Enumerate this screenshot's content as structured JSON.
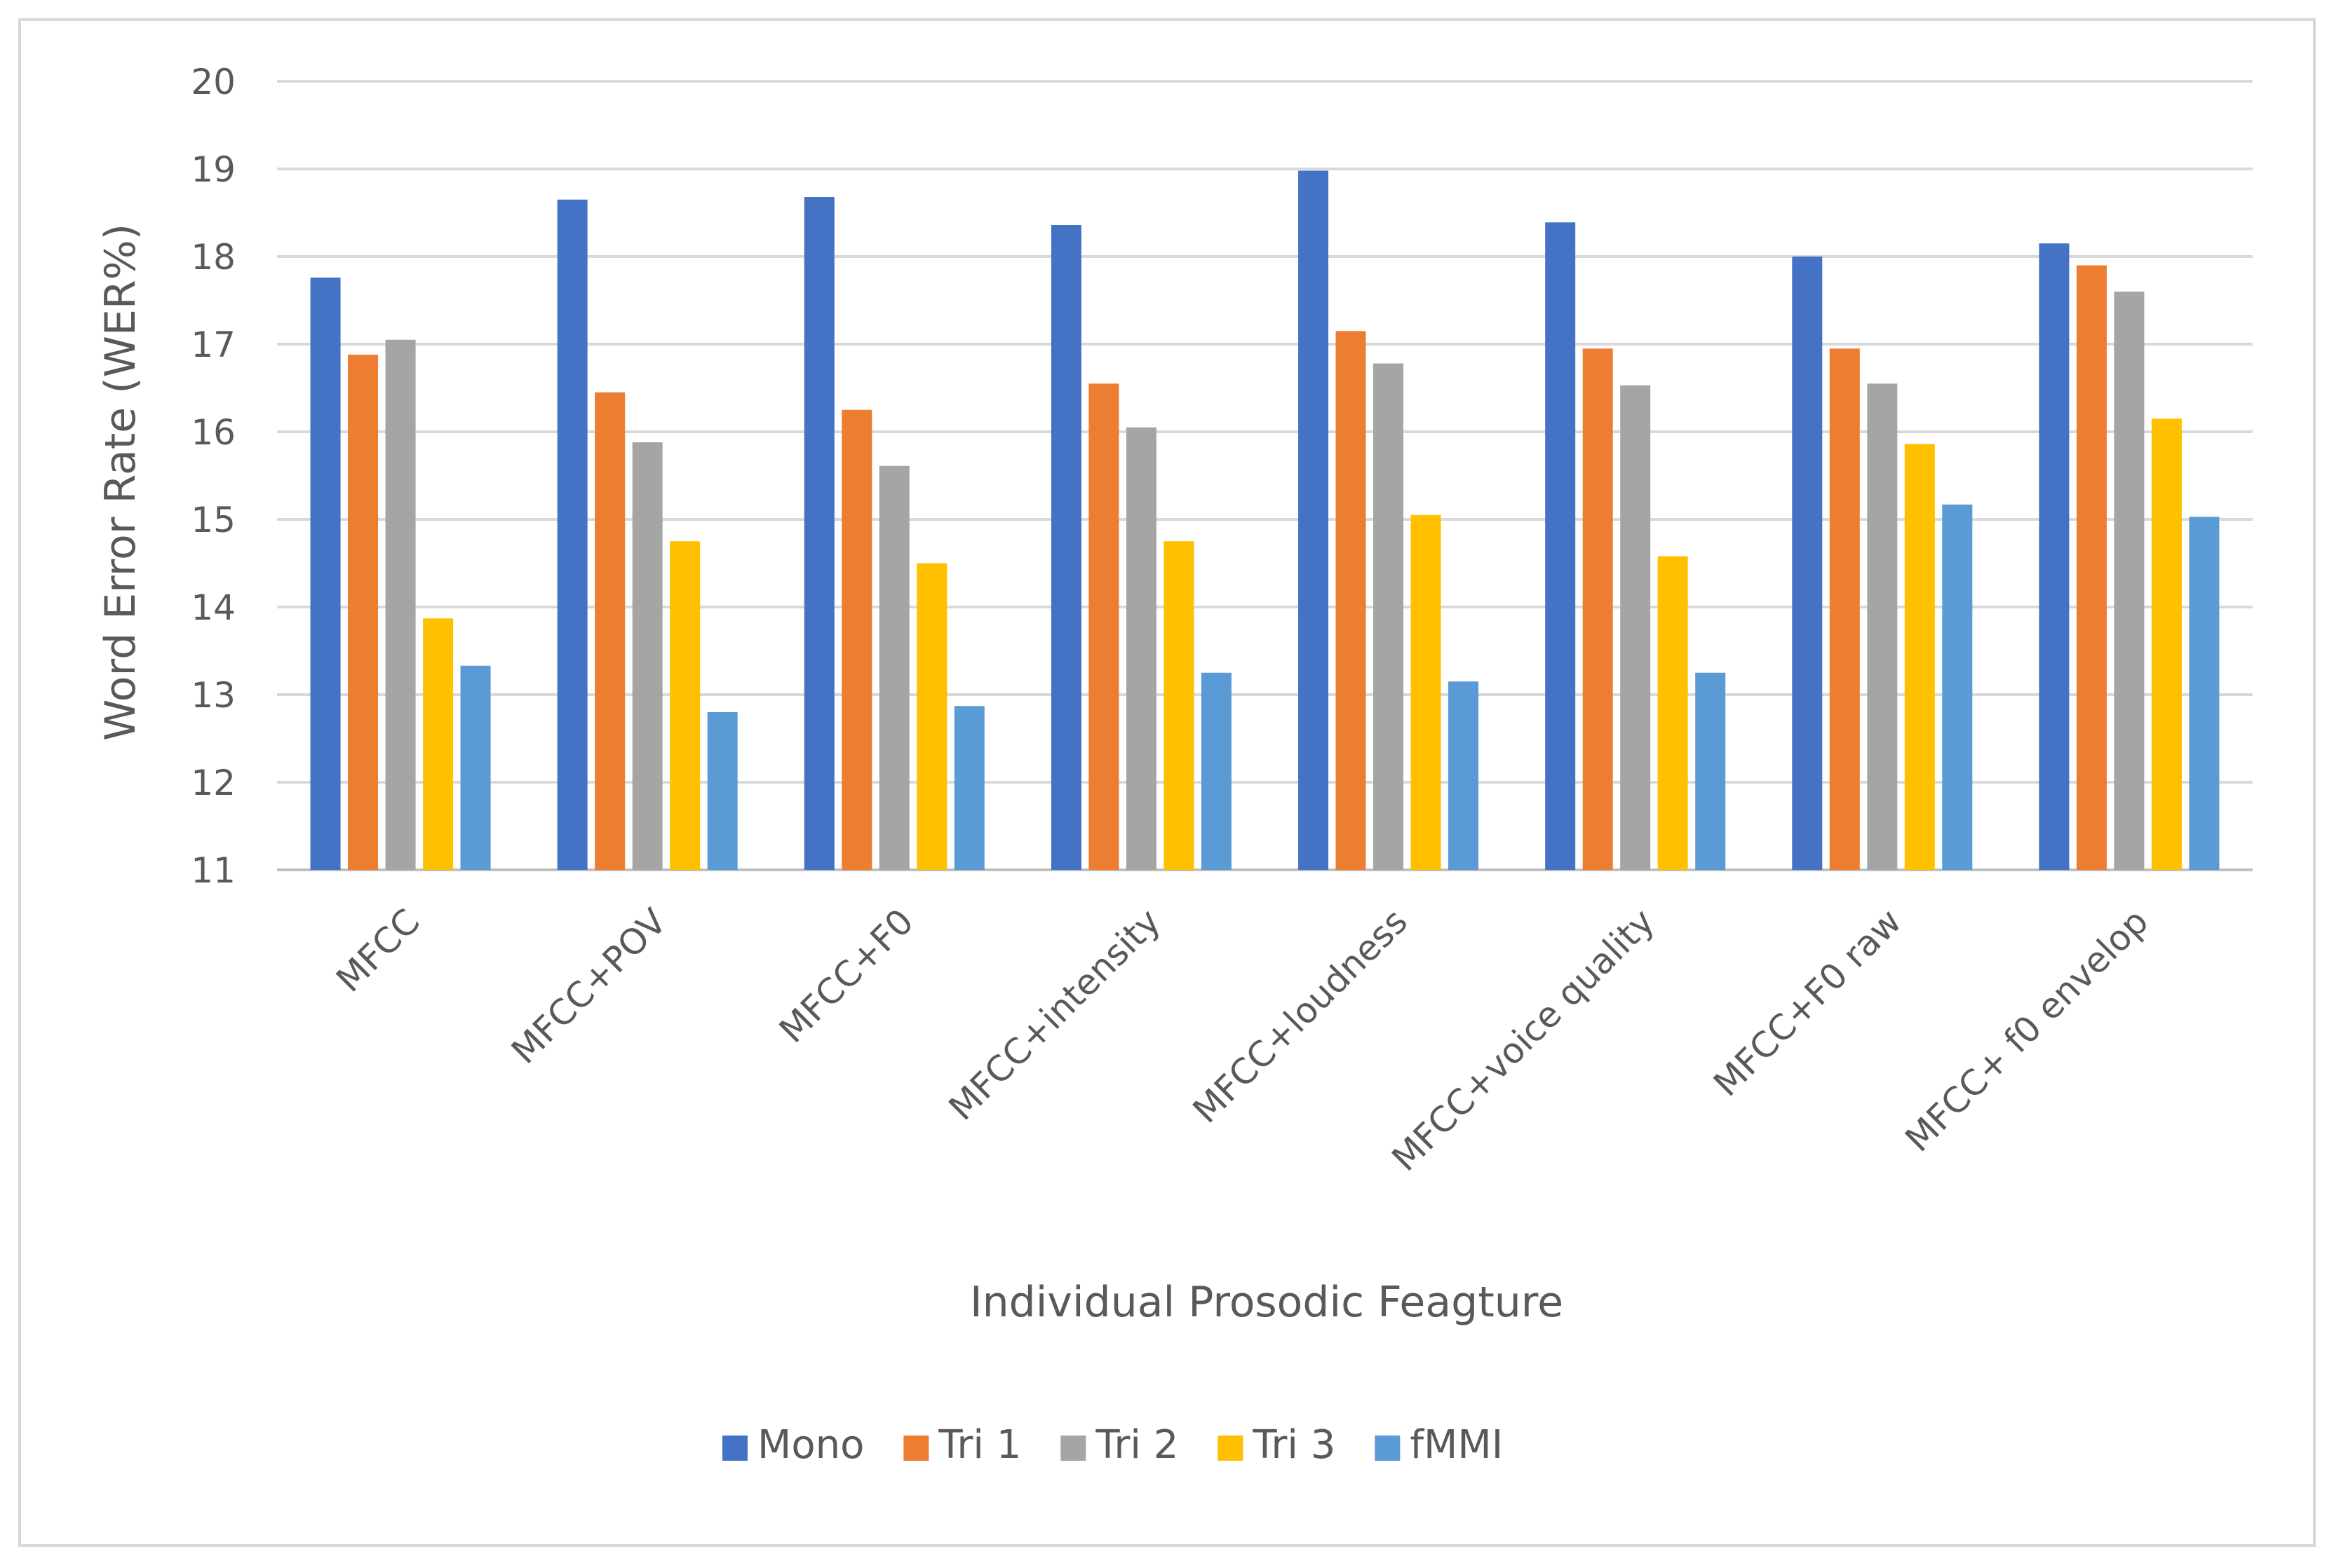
{
  "chart_data": {
    "type": "bar",
    "title": "",
    "xlabel": "Individual Prosodic Feagture",
    "ylabel": "Word Error Rate (WER%)",
    "ylim": [
      11,
      20
    ],
    "yticks": [
      "11",
      "12",
      "13",
      "14",
      "15",
      "16",
      "17",
      "18",
      "19",
      "20"
    ],
    "grid": true,
    "legend_position": "bottom",
    "categories": [
      "MFCC",
      "MFCC+POV",
      "MFCC+F0",
      "MFCC+intensity",
      "MFCC+loudness",
      "MFCC+voice quality",
      "MFCC+F0 raw",
      "MFCC+ f0 envelop"
    ],
    "series": [
      {
        "name": "Mono",
        "color": "#4472c4",
        "values": [
          17.76,
          18.65,
          18.68,
          18.36,
          18.98,
          18.39,
          18.0,
          18.15
        ]
      },
      {
        "name": "Tri 1",
        "color": "#ed7d31",
        "values": [
          16.88,
          16.45,
          16.25,
          16.55,
          17.15,
          16.95,
          16.95,
          17.9
        ]
      },
      {
        "name": "Tri 2",
        "color": "#a5a5a5",
        "values": [
          17.05,
          15.88,
          15.61,
          16.05,
          16.78,
          16.53,
          16.55,
          17.6
        ]
      },
      {
        "name": "Tri 3",
        "color": "#ffc000",
        "values": [
          13.87,
          14.75,
          14.5,
          14.75,
          15.05,
          14.58,
          15.86,
          16.15
        ]
      },
      {
        "name": "fMMI",
        "color": "#5b9bd5",
        "values": [
          13.33,
          12.8,
          12.87,
          13.25,
          13.15,
          13.25,
          15.17,
          15.03
        ]
      }
    ]
  }
}
